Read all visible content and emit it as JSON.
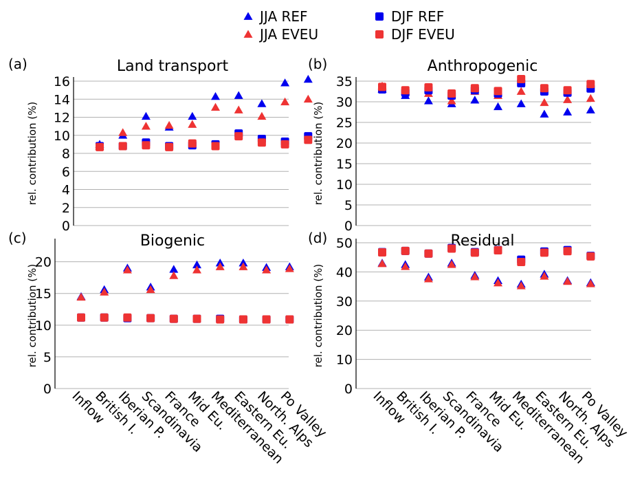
{
  "legend": {
    "entries": [
      {
        "label": "JJA REF",
        "marker": "triangle",
        "color": "#0000ee"
      },
      {
        "label": "DJF REF",
        "marker": "square",
        "color": "#0000ee"
      },
      {
        "label": "JJA EVEU",
        "marker": "triangle",
        "color": "#ee3333"
      },
      {
        "label": "DJF EVEU",
        "marker": "square",
        "color": "#ee1111"
      }
    ]
  },
  "colors": {
    "ref": "#0000ee",
    "eveu": "#ee3333",
    "grid": "#b0b0b0"
  },
  "chart_data": [
    {
      "type": "scatter",
      "panel_label": "(a)",
      "title": "Land transport",
      "ylabel": "rel. contribution (%)",
      "ylim": [
        0,
        16
      ],
      "yticks": [
        0,
        2,
        4,
        6,
        8,
        10,
        12,
        14,
        16
      ],
      "grid": true,
      "categories": [
        "Inflow",
        "British I.",
        "Iberian P.",
        "Scandinavia",
        "France",
        "Mid Eu.",
        "Mediterranean",
        "Eastern Eu.",
        "North. Alps",
        "Po Valley"
      ],
      "series": [
        {
          "name": "JJA REF",
          "values": [
            9.0,
            10.0,
            12.1,
            10.9,
            12.1,
            14.3,
            14.4,
            13.5,
            15.8,
            16.2
          ]
        },
        {
          "name": "DJF REF",
          "values": [
            8.8,
            8.8,
            9.2,
            8.8,
            8.9,
            9.0,
            10.2,
            9.6,
            9.3,
            9.9
          ]
        },
        {
          "name": "JJA EVEU",
          "values": [
            8.8,
            10.3,
            11.0,
            11.1,
            11.2,
            13.1,
            12.8,
            12.1,
            13.7,
            14.0
          ]
        },
        {
          "name": "DJF EVEU",
          "values": [
            8.7,
            8.8,
            8.9,
            8.7,
            9.1,
            8.8,
            9.9,
            9.2,
            9.0,
            9.5
          ]
        }
      ]
    },
    {
      "type": "scatter",
      "panel_label": "(b)",
      "title": "Anthropogenic",
      "ylabel": "rel. contribution (%)",
      "ylim": [
        0,
        35
      ],
      "yticks": [
        0,
        5,
        10,
        15,
        20,
        25,
        30,
        35
      ],
      "grid": true,
      "categories": [
        "Inflow",
        "British I.",
        "Iberian P.",
        "Scandinavia",
        "France",
        "Mid Eu.",
        "Mediterranean",
        "Eastern Eu.",
        "North. Alps",
        "Po Valley"
      ],
      "series": [
        {
          "name": "JJA REF",
          "values": [
            33.0,
            31.5,
            30.2,
            29.5,
            30.4,
            28.8,
            29.5,
            27.0,
            27.5,
            28.0
          ]
        },
        {
          "name": "DJF REF",
          "values": [
            33.0,
            32.2,
            32.8,
            31.5,
            32.8,
            32.0,
            34.5,
            32.5,
            32.2,
            33.2
          ]
        },
        {
          "name": "JJA EVEU",
          "values": [
            33.8,
            32.5,
            32.0,
            30.2,
            32.5,
            31.5,
            32.5,
            29.8,
            30.5,
            30.8
          ]
        },
        {
          "name": "DJF EVEU",
          "values": [
            33.6,
            32.8,
            33.5,
            32.0,
            33.3,
            32.6,
            35.5,
            33.3,
            32.8,
            34.3
          ]
        }
      ]
    },
    {
      "type": "scatter",
      "panel_label": "(c)",
      "title": "Biogenic",
      "ylabel": "rel. contribution (%)",
      "ylim": [
        0,
        23
      ],
      "yticks": [
        0,
        5,
        10,
        15,
        20
      ],
      "grid": true,
      "categories": [
        "Inflow",
        "British I.",
        "Iberian P.",
        "Scandinavia",
        "France",
        "Mid Eu.",
        "Mediterranean",
        "Eastern Eu.",
        "North. Alps",
        "Po Valley"
      ],
      "series": [
        {
          "name": "JJA REF",
          "values": [
            14.5,
            15.6,
            19.0,
            16.0,
            18.8,
            19.5,
            19.8,
            19.8,
            19.1,
            19.2
          ]
        },
        {
          "name": "DJF REF",
          "values": [
            11.2,
            11.2,
            11.1,
            11.1,
            11.0,
            11.0,
            11.0,
            10.9,
            10.9,
            10.9
          ]
        },
        {
          "name": "JJA EVEU",
          "values": [
            14.4,
            15.2,
            18.7,
            15.6,
            17.8,
            18.7,
            19.2,
            19.2,
            18.7,
            18.9
          ]
        },
        {
          "name": "DJF EVEU",
          "values": [
            11.2,
            11.2,
            11.2,
            11.1,
            11.0,
            11.0,
            10.9,
            10.9,
            10.9,
            10.9
          ]
        }
      ]
    },
    {
      "type": "scatter",
      "panel_label": "(d)",
      "title": "Residual",
      "ylabel": "rel. contribution (%)",
      "ylim": [
        0,
        50
      ],
      "yticks": [
        0,
        10,
        20,
        30,
        40,
        50
      ],
      "grid": true,
      "categories": [
        "Inflow",
        "British I.",
        "Iberian P.",
        "Scandinavia",
        "France",
        "Mid Eu.",
        "Mediterranean",
        "Eastern Eu.",
        "North. Alps",
        "Po Valley"
      ],
      "series": [
        {
          "name": "JJA REF",
          "values": [
            43.0,
            42.5,
            38.2,
            43.0,
            38.8,
            37.0,
            35.8,
            39.2,
            37.0,
            36.3
          ]
        },
        {
          "name": "DJF REF",
          "values": [
            46.8,
            47.2,
            46.3,
            48.2,
            46.8,
            47.5,
            44.2,
            47.0,
            47.5,
            45.5
          ]
        },
        {
          "name": "JJA EVEU",
          "values": [
            42.8,
            41.8,
            37.6,
            42.5,
            38.3,
            36.2,
            35.2,
            38.5,
            36.7,
            35.9
          ]
        },
        {
          "name": "DJF EVEU",
          "values": [
            46.7,
            47.2,
            46.3,
            48.0,
            46.6,
            47.4,
            43.4,
            46.6,
            47.1,
            45.3
          ]
        }
      ]
    }
  ]
}
